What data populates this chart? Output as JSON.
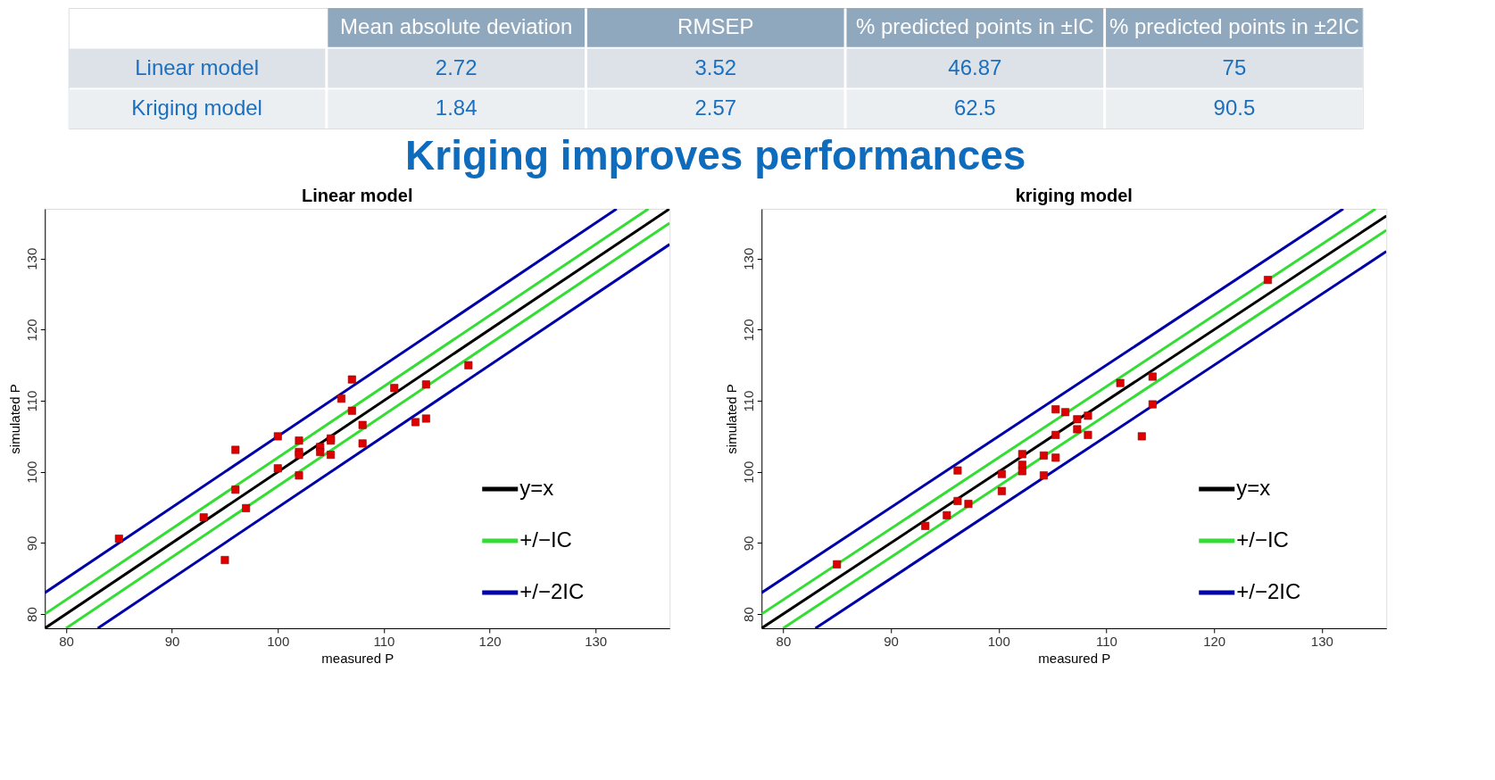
{
  "chart_data": [
    {
      "type": "scatter",
      "title": "Linear model",
      "xlabel": "measured P",
      "ylabel": "simulated P",
      "xlim": [
        78,
        137
      ],
      "ylim": [
        78,
        137
      ],
      "xticks": [
        80,
        90,
        100,
        110,
        120,
        130
      ],
      "yticks": [
        80,
        90,
        100,
        110,
        120,
        130
      ],
      "legend": "bottom right",
      "series": [
        {
          "type": "line",
          "name": "y=x",
          "color": "#000000",
          "x": [
            78,
            137
          ],
          "values": [
            78,
            137
          ]
        },
        {
          "type": "line",
          "name": "+/−IC",
          "color": "#33dd33",
          "x": [
            78,
            135
          ],
          "values": [
            80,
            137
          ]
        },
        {
          "type": "line",
          "color": "#33dd33",
          "x": [
            80,
            137
          ],
          "values": [
            78,
            135
          ]
        },
        {
          "type": "line",
          "name": "+/−2IC",
          "color": "#0000aa",
          "x": [
            78,
            132
          ],
          "values": [
            83,
            137
          ]
        },
        {
          "type": "line",
          "color": "#0000aa",
          "x": [
            83,
            137
          ],
          "values": [
            78,
            132
          ]
        },
        {
          "type": "scatter",
          "marker": "square",
          "color": "#dd0000",
          "x": [
            85,
            93,
            95,
            96,
            96,
            97,
            100,
            100,
            102,
            102,
            102,
            102,
            104,
            104,
            105,
            105,
            105,
            106,
            107,
            107,
            108,
            108,
            111,
            113,
            114,
            114,
            118
          ],
          "values": [
            90.6,
            93.6,
            87.6,
            97.5,
            103.1,
            94.9,
            105,
            100.5,
            104.4,
            102.8,
            102.4,
            99.5,
            103.5,
            102.8,
            104.7,
            104.4,
            102.4,
            110.3,
            113,
            108.6,
            106.6,
            104,
            111.8,
            107,
            112.3,
            107.5,
            115
          ]
        }
      ]
    },
    {
      "type": "scatter",
      "title": "kriging model",
      "xlabel": "measured P",
      "ylabel": "simulated P",
      "xlim": [
        78,
        136
      ],
      "ylim": [
        78,
        137
      ],
      "xticks": [
        80,
        90,
        100,
        110,
        120,
        130
      ],
      "yticks": [
        80,
        90,
        100,
        110,
        120,
        130
      ],
      "legend": "bottom right",
      "series": [
        {
          "type": "line",
          "name": "y=x",
          "color": "#000000",
          "x": [
            78,
            136
          ],
          "values": [
            78,
            136
          ]
        },
        {
          "type": "line",
          "name": "+/−IC",
          "color": "#33dd33",
          "x": [
            78,
            135
          ],
          "values": [
            80,
            137
          ]
        },
        {
          "type": "line",
          "color": "#33dd33",
          "x": [
            80,
            136
          ],
          "values": [
            78,
            134
          ]
        },
        {
          "type": "line",
          "name": "+/−2IC",
          "color": "#0000aa",
          "x": [
            78,
            132
          ],
          "values": [
            83,
            137
          ]
        },
        {
          "type": "line",
          "color": "#0000aa",
          "x": [
            83,
            136
          ],
          "values": [
            78,
            131
          ]
        },
        {
          "type": "scatter",
          "marker": "square",
          "color": "#dd0000",
          "x": [
            85,
            93.2,
            95.2,
            96.2,
            97.2,
            96.2,
            100.3,
            100.3,
            102.2,
            102.2,
            102.2,
            104.2,
            104.2,
            105.3,
            105.3,
            105.3,
            106.2,
            107.3,
            107.3,
            108.3,
            108.3,
            111.3,
            114.3,
            114.3,
            113.3,
            125
          ],
          "values": [
            87,
            92.4,
            93.9,
            95.9,
            95.5,
            100.2,
            99.7,
            97.3,
            102.5,
            101,
            100.1,
            102.3,
            99.5,
            102,
            105.2,
            108.8,
            108.4,
            107.4,
            106,
            107.9,
            105.2,
            112.5,
            113.4,
            109.5,
            105,
            127
          ]
        }
      ]
    },
    {
      "type": "heatmap",
      "categories": [
        "Mean absolute deviation",
        "RMSEP",
        "% predicted points in ±IC",
        "% predicted points in ±2IC"
      ],
      "y_categories": [
        "Linear model",
        "Kriging model"
      ],
      "cells": [
        [
          2.72,
          3.52,
          46.87,
          75
        ],
        [
          1.84,
          2.57,
          62.5,
          90.5
        ]
      ],
      "data_labels": true,
      "annotations": [
        "Kriging improves performances"
      ]
    }
  ]
}
